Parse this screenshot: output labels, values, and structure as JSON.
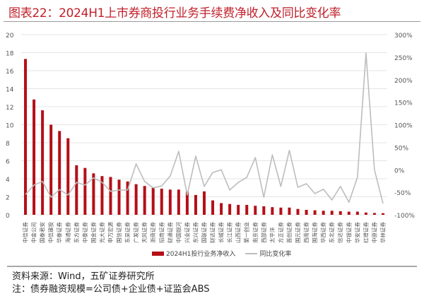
{
  "header": {
    "title": "图表22：2024H1上市券商投行业务手续费净收入及同比变化率"
  },
  "legend": {
    "bar_label": "2024H1投行业务净收入",
    "line_label": "同比变化率"
  },
  "footer": {
    "source": "资料来源：Wind，五矿证券研究所",
    "note": "注：债券融资规模=公司债+企业债+证监会ABS"
  },
  "colors": {
    "title": "#c0202a",
    "bar": "#b40f17",
    "line": "#bdbdbd",
    "grid": "#e4e4e4",
    "axis_text": "#555555"
  },
  "chart_data": {
    "type": "bar+line",
    "title": "2024H1上市券商投行业务手续费净收入及同比变化率",
    "xlabel": "",
    "ylabel_left": "",
    "ylabel_right": "",
    "ylim_left": [
      0,
      20
    ],
    "yticks_left": [
      0,
      2,
      4,
      6,
      8,
      10,
      12,
      14,
      16,
      18,
      20
    ],
    "ylim_right": [
      -100,
      300
    ],
    "yticks_right": [
      "-100%",
      "-50%",
      "0%",
      "50%",
      "100%",
      "150%",
      "200%",
      "250%",
      "300%"
    ],
    "grid": true,
    "legend_position": "bottom",
    "categories": [
      "中信证券",
      "中金公司",
      "国泰君安",
      "中信建投",
      "华泰证券",
      "海通证券",
      "东方证券",
      "中泰证券",
      "国金证券",
      "光大证券",
      "申万宏源",
      "国信证券",
      "东吴证券",
      "广发证券",
      "天风证券",
      "浙商证券",
      "招商证券",
      "财通证券",
      "中国银河",
      "兴业证券",
      "东兴证券",
      "国联证券",
      "财达证券",
      "长城证券",
      "长江证券",
      "山西证券",
      "第一创业",
      "南京证券",
      "西部证券",
      "太平洋",
      "方正证券",
      "首创证券",
      "国元证券",
      "西南证券",
      "国海证券",
      "华西证券",
      "东北证券",
      "信达证券",
      "中银证券",
      "华安证券",
      "红塔证券",
      "中原证券",
      "华林证券"
    ],
    "series": [
      {
        "name": "2024H1投行业务净收入",
        "type": "bar",
        "axis": "left",
        "values": [
          17.3,
          12.8,
          11.6,
          10.0,
          9.3,
          8.5,
          5.5,
          5.2,
          4.6,
          4.3,
          4.2,
          3.9,
          3.7,
          3.4,
          3.2,
          3.0,
          2.9,
          2.8,
          2.8,
          2.6,
          2.2,
          2.6,
          1.6,
          1.3,
          1.2,
          1.1,
          1.1,
          1.0,
          0.95,
          0.85,
          0.8,
          0.8,
          0.65,
          0.55,
          0.5,
          0.45,
          0.45,
          0.4,
          0.35,
          0.35,
          0.25,
          0.2,
          0.18
        ]
      },
      {
        "name": "同比变化率",
        "type": "line",
        "axis": "right",
        "unit": "%",
        "values": [
          -55,
          -34,
          -26,
          -61,
          -44,
          -56,
          -28,
          -34,
          -18,
          -28,
          -48,
          -45,
          -45,
          13,
          -26,
          -40,
          -36,
          -14,
          41,
          -56,
          30,
          -37,
          -6,
          0,
          -45,
          -28,
          -17,
          27,
          -61,
          33,
          -37,
          43,
          -39,
          -31,
          -53,
          -43,
          -67,
          -37,
          -72,
          -17,
          259,
          0,
          -75
        ]
      }
    ]
  }
}
